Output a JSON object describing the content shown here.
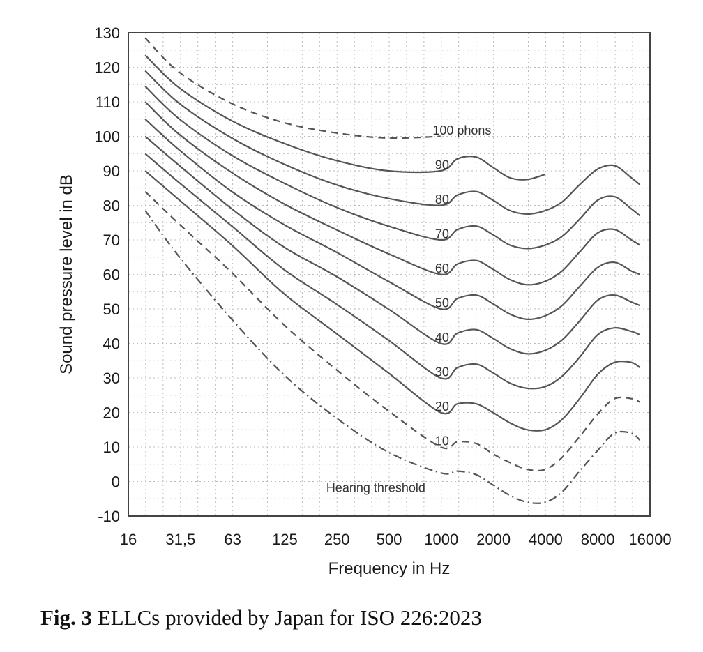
{
  "chart_data": {
    "type": "line",
    "xlabel": "Frequency in Hz",
    "ylabel": "Sound pressure level in dB",
    "xscale": "log2",
    "xlim": [
      16,
      16000
    ],
    "ylim": [
      -10,
      130
    ],
    "xticks": [
      "16",
      "31,5",
      "63",
      "125",
      "250",
      "500",
      "1000",
      "2000",
      "4000",
      "8000",
      "16000"
    ],
    "yticks": [
      "130",
      "120",
      "110",
      "100",
      "90",
      "80",
      "70",
      "60",
      "50",
      "40",
      "30",
      "20",
      "10",
      "0",
      "-10"
    ],
    "grid": true,
    "colors": {
      "curve": "#555555",
      "grid": "#bbbbbb",
      "frame": "#444444"
    },
    "series": [
      {
        "name": "100 phons",
        "label": "100 phons",
        "label_freq": 900,
        "label_db": 100.5,
        "style": "dashed",
        "x": [
          20,
          31.5,
          63,
          125,
          250,
          500,
          1000
        ],
        "y": [
          128.5,
          118.5,
          109.5,
          104,
          101,
          99.5,
          100
        ]
      },
      {
        "name": "90",
        "label": "90",
        "label_freq": 930,
        "label_db": 90.5,
        "style": "solid",
        "x": [
          20,
          31.5,
          63,
          125,
          250,
          500,
          1000,
          1250,
          1600,
          2000,
          2500,
          3150,
          4000
        ],
        "y": [
          123.5,
          114,
          104.5,
          98,
          93,
          90,
          90,
          93.5,
          94,
          91,
          88,
          87.5,
          89
        ]
      },
      {
        "name": "80",
        "label": "80",
        "label_freq": 930,
        "label_db": 80.5,
        "style": "solid",
        "x": [
          20,
          31.5,
          63,
          125,
          250,
          500,
          1000,
          1250,
          1600,
          2000,
          2500,
          3150,
          4000,
          5000,
          6300,
          8000,
          10000,
          12500,
          14000
        ],
        "y": [
          119,
          109.5,
          99.5,
          92,
          86,
          82,
          80,
          83,
          84,
          81.5,
          78.5,
          77.5,
          78.5,
          81,
          86,
          90.5,
          91.5,
          88,
          86
        ]
      },
      {
        "name": "70",
        "label": "70",
        "label_freq": 930,
        "label_db": 70.5,
        "style": "solid",
        "x": [
          20,
          31.5,
          63,
          125,
          250,
          500,
          1000,
          1250,
          1600,
          2000,
          2500,
          3150,
          4000,
          5000,
          6300,
          8000,
          10000,
          12500,
          14000
        ],
        "y": [
          114.5,
          105,
          94.5,
          86.5,
          79.5,
          74,
          70,
          73,
          74,
          71.5,
          68.5,
          67.5,
          68.5,
          71,
          76,
          81.5,
          82.5,
          79,
          77
        ]
      },
      {
        "name": "60",
        "label": "60",
        "label_freq": 930,
        "label_db": 60.5,
        "style": "solid",
        "x": [
          20,
          31.5,
          63,
          125,
          250,
          500,
          1000,
          1250,
          1600,
          2000,
          2500,
          3150,
          4000,
          5000,
          6300,
          8000,
          10000,
          12500,
          14000
        ],
        "y": [
          110,
          100.5,
          89.5,
          80.5,
          73,
          66,
          60,
          63,
          64,
          61.5,
          58.5,
          57,
          58,
          61,
          66.5,
          72,
          73,
          70,
          68.5
        ]
      },
      {
        "name": "50",
        "label": "50",
        "label_freq": 930,
        "label_db": 50.5,
        "style": "solid",
        "x": [
          20,
          31.5,
          63,
          125,
          250,
          500,
          1000,
          1250,
          1600,
          2000,
          2500,
          3150,
          4000,
          5000,
          6300,
          8000,
          10000,
          12500,
          14000
        ],
        "y": [
          105,
          96,
          84,
          74.5,
          66.5,
          58,
          50,
          53,
          54,
          51.5,
          48.5,
          47,
          48,
          51,
          56.5,
          62,
          63.5,
          61,
          60
        ]
      },
      {
        "name": "40",
        "label": "40",
        "label_freq": 930,
        "label_db": 40.5,
        "style": "solid",
        "x": [
          20,
          31.5,
          63,
          125,
          250,
          500,
          1000,
          1250,
          1600,
          2000,
          2500,
          3150,
          4000,
          5000,
          6300,
          8000,
          10000,
          12500,
          14000
        ],
        "y": [
          100,
          91.5,
          79,
          68,
          59.5,
          50,
          40,
          43,
          44,
          41.5,
          38.5,
          37,
          38,
          41,
          46.5,
          52.5,
          54,
          52,
          51
        ]
      },
      {
        "name": "30",
        "label": "30",
        "label_freq": 930,
        "label_db": 30.5,
        "style": "solid",
        "x": [
          20,
          31.5,
          63,
          125,
          250,
          500,
          1000,
          1250,
          1600,
          2000,
          2500,
          3150,
          4000,
          5000,
          6300,
          8000,
          10000,
          12500,
          14000
        ],
        "y": [
          95,
          86.5,
          74,
          61.5,
          51.5,
          41,
          30,
          33,
          34,
          31.5,
          28.5,
          27,
          27.5,
          30.5,
          36,
          42.5,
          44.5,
          43.5,
          42.5
        ]
      },
      {
        "name": "20",
        "label": "20",
        "label_freq": 930,
        "label_db": 20.5,
        "style": "solid",
        "x": [
          20,
          31.5,
          63,
          125,
          250,
          500,
          1000,
          1250,
          1600,
          2000,
          2500,
          3150,
          4000,
          5000,
          6300,
          8000,
          10000,
          12500,
          14000
        ],
        "y": [
          90,
          81.5,
          68.5,
          54.5,
          43,
          31.5,
          20,
          22.5,
          22.5,
          20,
          17,
          15,
          15,
          18,
          24,
          31,
          34.5,
          34.5,
          33
        ]
      },
      {
        "name": "10",
        "label": "10",
        "label_freq": 930,
        "label_db": 10.5,
        "style": "dashed",
        "x": [
          20,
          31.5,
          63,
          125,
          250,
          500,
          1000,
          1250,
          1600,
          2000,
          2500,
          3150,
          4000,
          5000,
          6300,
          8000,
          10000,
          12500,
          14000
        ],
        "y": [
          84,
          74.5,
          60.5,
          45.5,
          32.5,
          20.5,
          10,
          11.5,
          11,
          8,
          5.5,
          3.5,
          3.5,
          7,
          13,
          19.5,
          24,
          24,
          23
        ]
      },
      {
        "name": "Hearing threshold",
        "label": "Hearing threshold",
        "label_freq": 220,
        "label_db": -3,
        "style": "dashdot",
        "x": [
          20,
          31.5,
          63,
          125,
          250,
          500,
          1000,
          1250,
          1600,
          2000,
          2500,
          3150,
          4000,
          5000,
          6300,
          8000,
          10000,
          12500,
          14000
        ],
        "y": [
          78.5,
          65,
          47,
          31,
          18.5,
          8.5,
          2.5,
          3,
          2,
          -1,
          -4,
          -6,
          -6,
          -3,
          3,
          9,
          14,
          14,
          12
        ]
      }
    ]
  },
  "caption": {
    "fig": "Fig. 3",
    "text": " ELLCs provided by Japan for ISO 226:2023"
  }
}
